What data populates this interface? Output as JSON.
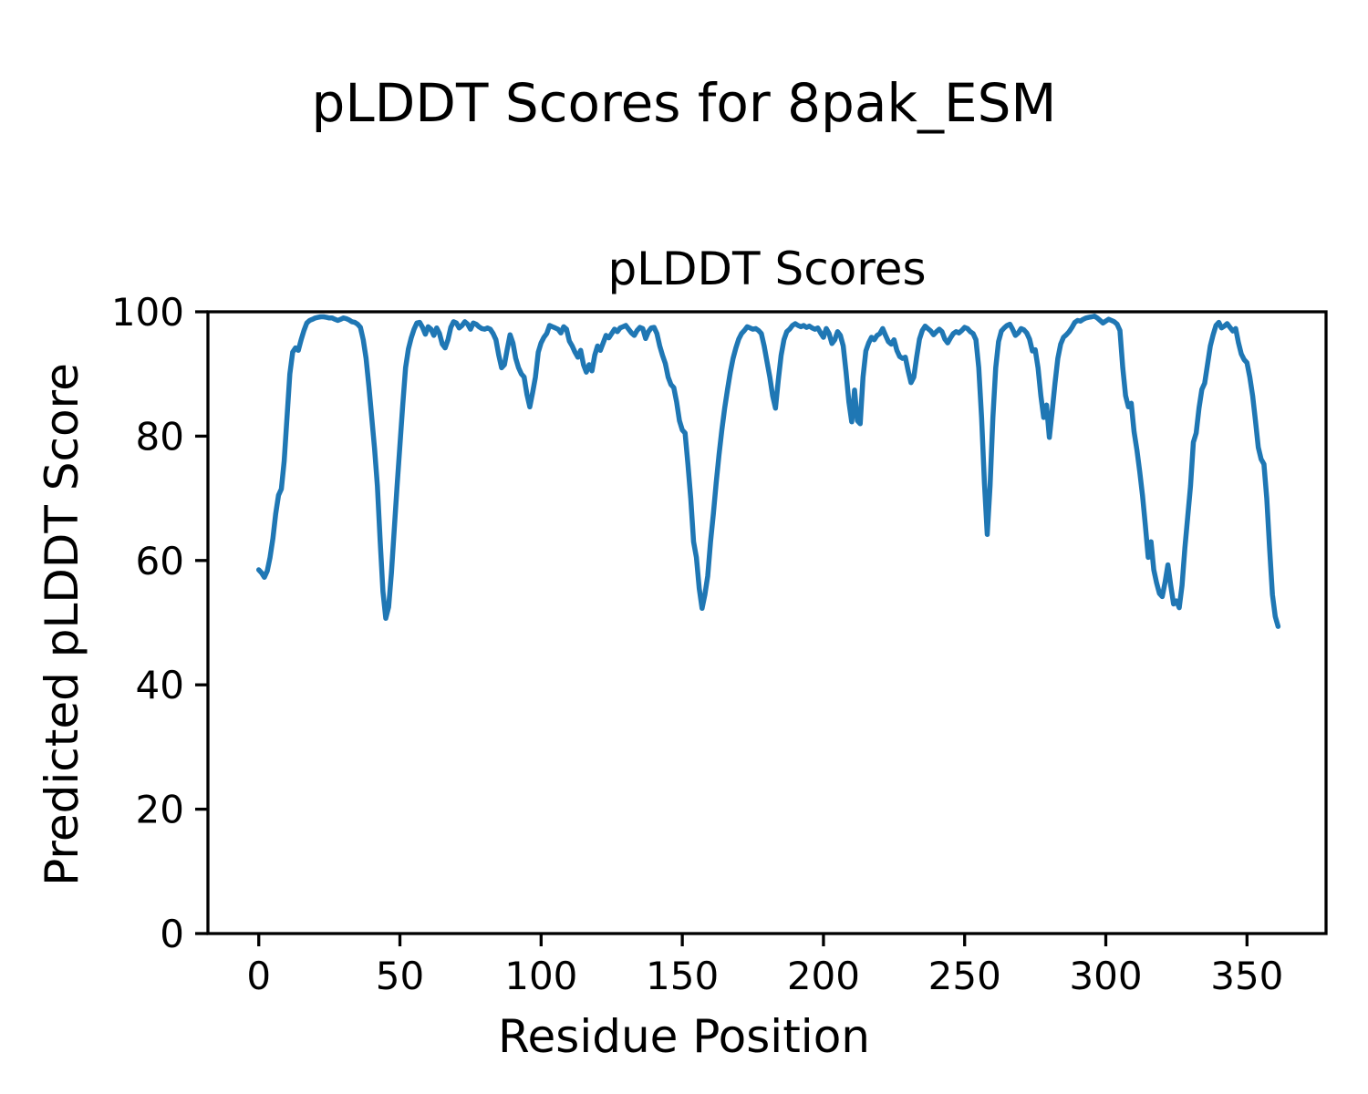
{
  "figure": {
    "suptitle": "pLDDT Scores for 8pak_ESM"
  },
  "axes": {
    "title": "pLDDT Scores",
    "xlabel": "Residue Position",
    "ylabel": "Predicted pLDDT Score"
  },
  "chart_data": {
    "type": "line",
    "title": "pLDDT Scores",
    "xlabel": "Residue Position",
    "ylabel": "Predicted pLDDT Score",
    "xlim": [
      -18,
      378
    ],
    "ylim": [
      0,
      100
    ],
    "x_ticks": [
      0,
      50,
      100,
      150,
      200,
      250,
      300,
      350
    ],
    "y_ticks": [
      0,
      20,
      40,
      60,
      80,
      100
    ],
    "grid": false,
    "legend": "none",
    "line_color": "#1f77b4",
    "x_start": 0,
    "x_step": 1,
    "series": [
      {
        "name": "pLDDT",
        "values": [
          58.5,
          58,
          57.3,
          58.3,
          60.5,
          63.5,
          67.5,
          70.5,
          71.5,
          76,
          83,
          90,
          93.5,
          94.2,
          93.8,
          95.5,
          97,
          98.2,
          98.6,
          98.8,
          99,
          99.1,
          99.2,
          99.2,
          99.1,
          99,
          99,
          98.8,
          98.6,
          98.8,
          99,
          98.9,
          98.7,
          98.4,
          98.3,
          98,
          97.5,
          95.5,
          92.5,
          88,
          83,
          78,
          72,
          63,
          55,
          50.7,
          52.5,
          58,
          65,
          72,
          78.5,
          85,
          91,
          94,
          95.8,
          97.2,
          98.2,
          98.3,
          97.5,
          96.4,
          97.6,
          97.2,
          96.2,
          97.4,
          96.5,
          94.8,
          94.2,
          95.5,
          97.5,
          98.4,
          98.2,
          97.4,
          97.8,
          98.4,
          98,
          97.2,
          98.2,
          98,
          97.6,
          97.3,
          97.2,
          97.4,
          97.2,
          96.5,
          95.5,
          93,
          91,
          91.5,
          94,
          96.3,
          95,
          92.5,
          91,
          90,
          89.5,
          86.7,
          84.7,
          87,
          89.5,
          93.5,
          95,
          95.9,
          96.5,
          97.8,
          97.6,
          97.4,
          97.2,
          96.6,
          97.6,
          97.2,
          95.3,
          94.5,
          93.5,
          92.7,
          93.8,
          91.5,
          90.3,
          91.5,
          90.5,
          93,
          94.5,
          93.8,
          95,
          96.2,
          95.8,
          96.5,
          97.2,
          96.8,
          97.4,
          97.6,
          97.8,
          97.2,
          96.6,
          96.2,
          97,
          97.5,
          97.3,
          95.7,
          96.8,
          97.4,
          97.5,
          96.5,
          94.5,
          93,
          91.7,
          89.5,
          88.3,
          87.8,
          85.5,
          82.5,
          81,
          80.5,
          75.5,
          70,
          63,
          60.5,
          55.5,
          52.3,
          54.5,
          57.5,
          63,
          67.5,
          72.5,
          77,
          81,
          84.5,
          87.5,
          90.3,
          92.5,
          94.2,
          95.6,
          96.5,
          97,
          97.6,
          97.4,
          97.2,
          97.3,
          97,
          96.5,
          94.5,
          92,
          89.5,
          86.5,
          84.5,
          89,
          93,
          95.5,
          96.8,
          97.2,
          97.8,
          98.1,
          97.8,
          97.6,
          97.8,
          97.5,
          97.7,
          97.4,
          97.2,
          97.4,
          96.6,
          95.9,
          97.3,
          96.5,
          94.9,
          95.5,
          96.8,
          96.2,
          94.5,
          90.3,
          85.5,
          82.3,
          87.4,
          82.5,
          82,
          89.5,
          93.7,
          95,
          95.9,
          95.5,
          96.2,
          96.5,
          97.3,
          96.2,
          95.2,
          94.8,
          95.5,
          93.8,
          92.8,
          92.5,
          92.7,
          90.5,
          88.6,
          89.5,
          92.7,
          95.6,
          97,
          97.7,
          97.3,
          96.9,
          96.3,
          96.8,
          97.2,
          96.8,
          95.6,
          95,
          95.8,
          96.5,
          96.8,
          96.6,
          97,
          97.5,
          97.3,
          96.8,
          96.5,
          95.5,
          91,
          83,
          72.5,
          64.2,
          72,
          83,
          91,
          95.2,
          96.9,
          97.4,
          97.8,
          98,
          97.2,
          96.2,
          96.6,
          97.3,
          97.1,
          96.6,
          95.6,
          93.7,
          93.9,
          91,
          86.5,
          83,
          85,
          79.8,
          84,
          88.5,
          92.5,
          94.8,
          95.9,
          96.3,
          96.8,
          97.5,
          98.3,
          98.6,
          98.5,
          98.8,
          99,
          99.1,
          99.2,
          99.3,
          99,
          98.6,
          98.2,
          98.5,
          98.8,
          98.6,
          98.4,
          98,
          97,
          91,
          86.5,
          84.7,
          85.3,
          80.7,
          77.8,
          74.3,
          70.4,
          65.6,
          60.5,
          63,
          58.5,
          56.4,
          54.7,
          54.2,
          56.5,
          59.3,
          56,
          53,
          53.5,
          52.4,
          56,
          62,
          67,
          72,
          79,
          80.5,
          84.5,
          87.5,
          88.5,
          91.5,
          94.5,
          96.3,
          97.8,
          98.3,
          97.4,
          97.7,
          98.1,
          97.5,
          96.9,
          97.3,
          95,
          93.2,
          92.3,
          91.8,
          89.5,
          86.5,
          82.5,
          78.2,
          76.3,
          75.5,
          70,
          62,
          54.5,
          51,
          49.4
        ]
      }
    ]
  }
}
